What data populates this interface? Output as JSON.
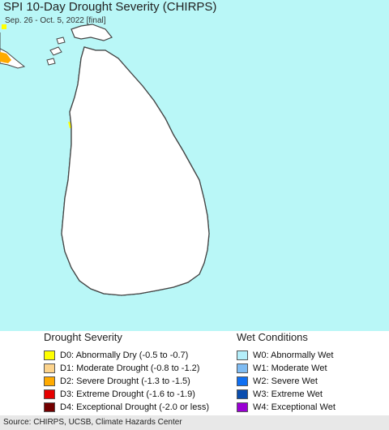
{
  "map": {
    "title": "SPI 10-Day Drought Severity (CHIRPS)",
    "subtitle": "Sep. 26 - Oct. 5, 2022 [final]",
    "colors": {
      "ocean": "#b9f7f7",
      "land": "#ffffff",
      "border": "#444444",
      "district": "#8a8a8a",
      "d0": "#ffff00",
      "d1": "#fcd38c",
      "d2": "#ffaa00",
      "w0": "#b4eefa",
      "w1": "#7fbcf3"
    }
  },
  "legend": {
    "drought": {
      "heading": "Drought Severity",
      "items": [
        {
          "label": "D0: Abnormally Dry (-0.5 to -0.7)",
          "color": "#ffff00"
        },
        {
          "label": "D1: Moderate Drought (-0.8 to -1.2)",
          "color": "#fcd38c"
        },
        {
          "label": "D2: Severe Drought (-1.3 to -1.5)",
          "color": "#ffaa00"
        },
        {
          "label": "D3: Extreme Drought (-1.6 to -1.9)",
          "color": "#e60000"
        },
        {
          "label": "D4: Exceptional Drought (-2.0 or less)",
          "color": "#730000"
        }
      ]
    },
    "wet": {
      "heading": "Wet Conditions",
      "items": [
        {
          "label": "W0: Abnormally Wet",
          "color": "#b4eefa"
        },
        {
          "label": "W1: Moderate Wet",
          "color": "#7fbcf3"
        },
        {
          "label": "W2: Severe Wet",
          "color": "#0f6ff2"
        },
        {
          "label": "W3: Extreme Wet",
          "color": "#0a4dae"
        },
        {
          "label": "W4: Exceptional Wet",
          "color": "#9a00d4"
        }
      ]
    }
  },
  "footer": {
    "source": "Source: CHIRPS, UCSB, Climate Hazards Center"
  }
}
